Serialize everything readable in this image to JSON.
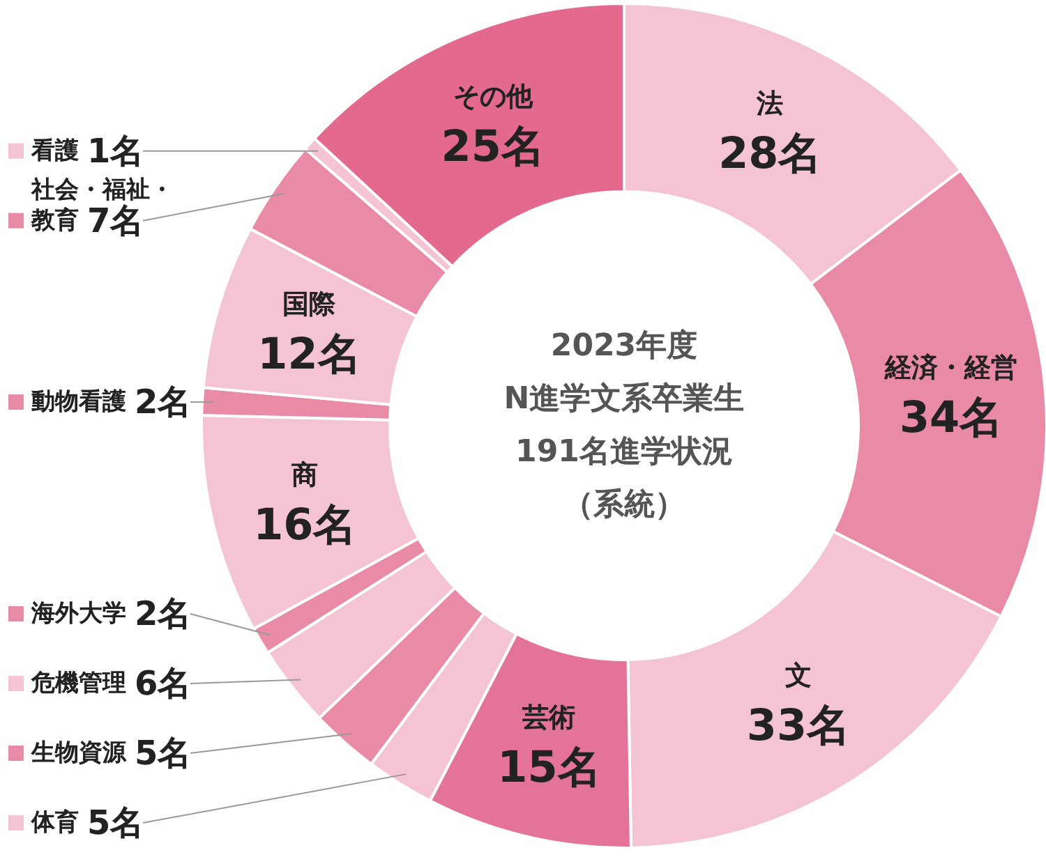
{
  "chart_data": {
    "type": "donut",
    "title": "2023年度N進学文系卒業生191名進学状況（系統）",
    "categories": [
      "法",
      "経済・経営",
      "文",
      "芸術",
      "体育",
      "生物資源",
      "危機管理",
      "海外大学",
      "商",
      "動物看護",
      "国際",
      "社会・福祉・教育",
      "看護",
      "その他"
    ],
    "values": [
      28,
      34,
      33,
      15,
      5,
      5,
      6,
      2,
      16,
      2,
      12,
      7,
      1,
      25
    ],
    "value_labels": [
      "28名",
      "34名",
      "33名",
      "15名",
      "5名",
      "5名",
      "6名",
      "2名",
      "16名",
      "2名",
      "12名",
      "7名",
      "1名",
      "25名"
    ],
    "colors": [
      "#f5c4d4",
      "#e98aa6",
      "#f5c4d4",
      "#e47497",
      "#f5c4d4",
      "#e98aa6",
      "#f5c4d4",
      "#e98aa6",
      "#f5c4d4",
      "#e98aa6",
      "#f5c4d4",
      "#e98aa6",
      "#f5c4d4",
      "#e3698e"
    ],
    "legend": "left"
  }
}
